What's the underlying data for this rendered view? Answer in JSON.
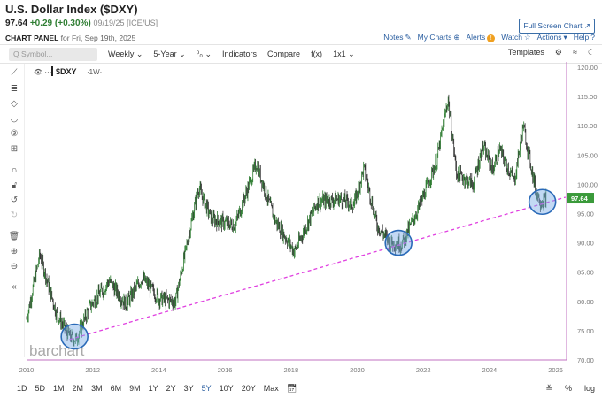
{
  "header": {
    "title": "U.S. Dollar Index ($DXY)",
    "last": "97.64",
    "change": "+0.29 (+0.30%)",
    "meta": "09/19/25 [ICE/US]",
    "panel_bold": "CHART PANEL",
    "panel_rest": "for Fri, Sep 19th, 2025",
    "fullscreen": "Full Screen Chart ↗",
    "links": [
      {
        "label": "Notes",
        "icon": "✎"
      },
      {
        "label": "My Charts",
        "icon": "⊕"
      },
      {
        "label": "Alerts",
        "icon": "!"
      },
      {
        "label": "Watch",
        "icon": "☆"
      },
      {
        "label": "Actions",
        "icon": "▾"
      },
      {
        "label": "Help",
        "icon": "?"
      }
    ]
  },
  "toolbar": {
    "symbol_placeholder": "Q  Symbol...",
    "items": [
      "Weekly ⌄",
      "5-Year ⌄",
      "⁰₀ ⌄",
      "Indicators",
      "Compare",
      "f(x)",
      "1x1 ⌄"
    ],
    "templates": "Templates",
    "gear": "⚙",
    "collapse": "≈",
    "moon": "☾"
  },
  "legend": {
    "symbol": "$DXY",
    "interval": "·1W·"
  },
  "watermark": "barchart",
  "left_tools": [
    "⟋",
    "≣",
    "◇",
    "◡",
    "③",
    "⊞",
    "∩",
    "🔓︎",
    "↺",
    "↻",
    "🗑︎",
    "⊕",
    "⊖",
    "«"
  ],
  "bottom": {
    "ranges": [
      "1D",
      "5D",
      "1M",
      "2M",
      "3M",
      "6M",
      "9M",
      "1Y",
      "2Y",
      "3Y",
      "5Y",
      "10Y",
      "20Y",
      "Max"
    ],
    "active": "5Y",
    "calendar": "📅︎",
    "right": [
      "≚",
      "%",
      "log"
    ]
  },
  "chart_data": {
    "type": "ohlc",
    "title": "$DXY",
    "interval": "Weekly",
    "ylim": [
      68,
      121
    ],
    "xlim": [
      2010.0,
      2026.5
    ],
    "y_ticks": [
      "120.00",
      "115.00",
      "110.00",
      "105.00",
      "100.00",
      "95.00",
      "90.00",
      "85.00",
      "80.00",
      "75.00",
      "70.00"
    ],
    "x_ticks": [
      "2010",
      "2012",
      "2014",
      "2016",
      "2018",
      "2020",
      "2022",
      "2024",
      "2026"
    ],
    "last_price": "97.64",
    "price_tag_color": "#3a9a3a",
    "series_anchors": [
      [
        2010.0,
        77
      ],
      [
        2010.4,
        88
      ],
      [
        2010.9,
        78
      ],
      [
        2011.3,
        74
      ],
      [
        2011.5,
        73.5
      ],
      [
        2011.9,
        79
      ],
      [
        2012.5,
        83.5
      ],
      [
        2013.0,
        79.5
      ],
      [
        2013.5,
        84
      ],
      [
        2014.0,
        80.5
      ],
      [
        2014.5,
        80
      ],
      [
        2015.2,
        99.5
      ],
      [
        2015.6,
        94
      ],
      [
        2016.3,
        93
      ],
      [
        2016.95,
        103.5
      ],
      [
        2017.5,
        94
      ],
      [
        2018.1,
        88.5
      ],
      [
        2018.8,
        97
      ],
      [
        2019.5,
        97.5
      ],
      [
        2019.9,
        96.5
      ],
      [
        2020.2,
        102.8
      ],
      [
        2020.6,
        93
      ],
      [
        2021.0,
        90
      ],
      [
        2021.35,
        89.8
      ],
      [
        2021.9,
        96.5
      ],
      [
        2022.4,
        104
      ],
      [
        2022.75,
        114.6
      ],
      [
        2023.0,
        102
      ],
      [
        2023.5,
        100
      ],
      [
        2023.8,
        106.5
      ],
      [
        2024.1,
        102.5
      ],
      [
        2024.3,
        106
      ],
      [
        2024.75,
        100.5
      ],
      [
        2025.02,
        110
      ],
      [
        2025.4,
        99
      ],
      [
        2025.55,
        97
      ],
      [
        2025.72,
        97.64
      ]
    ],
    "trendline": {
      "from": [
        2011.3,
        73.5
      ],
      "to": [
        2026.3,
        97.8
      ],
      "color": "#e040e0",
      "style": "dashed"
    },
    "highlight_circles": [
      [
        2011.45,
        74
      ],
      [
        2021.25,
        90
      ],
      [
        2025.6,
        97
      ]
    ],
    "colors": {
      "up": "#2e7d32",
      "down": "#333333",
      "axis_line": "#c070c0",
      "circle": "#2a6ab8"
    }
  }
}
